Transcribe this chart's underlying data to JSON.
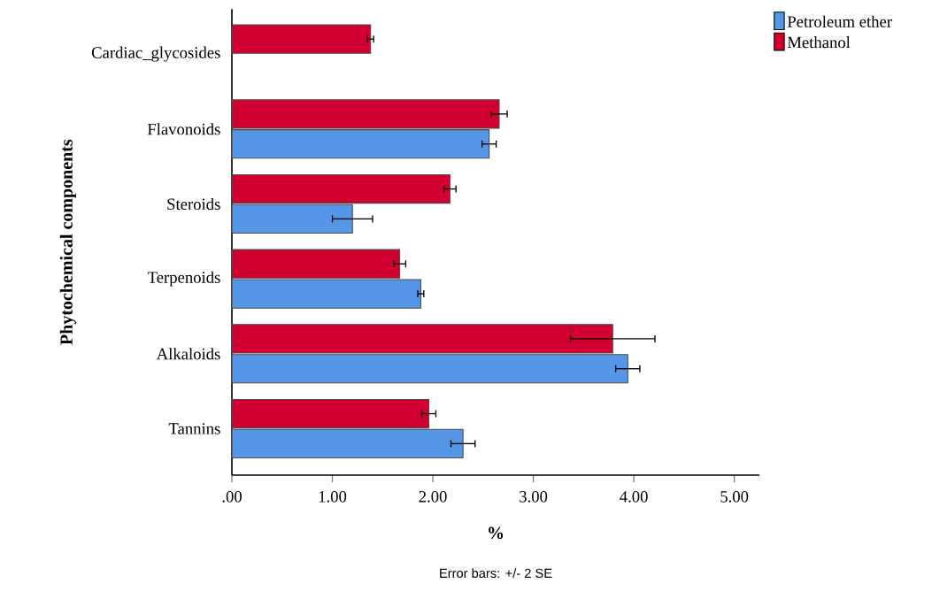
{
  "chart_data": {
    "type": "bar",
    "orientation": "horizontal",
    "xlabel": "%",
    "ylabel": "Phytochemical components",
    "categories": [
      "Cardiac_glycosides",
      "Flavonoids",
      "Steroids",
      "Terpenoids",
      "Alkaloids",
      "Tannins"
    ],
    "series": [
      {
        "name": "Petroleum ether",
        "color": "#5596e6",
        "values": [
          null,
          2.56,
          1.2,
          1.88,
          3.94,
          2.3
        ],
        "errors": [
          null,
          0.07,
          0.2,
          0.03,
          0.12,
          0.12
        ]
      },
      {
        "name": "Methanol",
        "color": "#d20030",
        "values": [
          1.38,
          2.66,
          2.17,
          1.67,
          3.79,
          1.96
        ],
        "errors": [
          0.03,
          0.08,
          0.06,
          0.06,
          0.42,
          0.07
        ]
      }
    ],
    "xlim": [
      0,
      5.25
    ],
    "xticks": [
      {
        "value": 0,
        "label": ".00"
      },
      {
        "value": 1,
        "label": "1.00"
      },
      {
        "value": 2,
        "label": "2.00"
      },
      {
        "value": 3,
        "label": "3.00"
      },
      {
        "value": 4,
        "label": "4.00"
      },
      {
        "value": 5,
        "label": "5.00"
      }
    ],
    "legend": "top right",
    "grid": false,
    "annotations": [
      "Error bars: +/- 2 SE"
    ]
  }
}
